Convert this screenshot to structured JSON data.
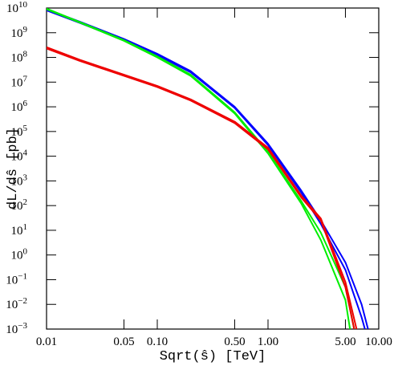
{
  "chart_data": {
    "type": "line",
    "x_label": "Sqrt(ŝ) [TeV]",
    "y_label": "dL/dŝ [pb]",
    "xscale": "log",
    "yscale": "log",
    "xlim": [
      0.01,
      10
    ],
    "ylim": [
      0.001,
      10000000000
    ],
    "xticks": [
      0.01,
      0.05,
      {
        "value": 0.1,
        "label": "0.10"
      },
      {
        "value": 0.5,
        "label": "0.50"
      },
      {
        "value": 1,
        "label": "1.00"
      },
      {
        "value": 5,
        "label": "5.00"
      },
      {
        "value": 10,
        "label": "10.00"
      }
    ],
    "yticks": [
      {
        "value": 0.001,
        "label": "10",
        "exponent": "−3"
      },
      {
        "value": 0.01,
        "label": "10",
        "exponent": "−2"
      },
      {
        "value": 0.1,
        "label": "10",
        "exponent": "−1"
      },
      {
        "value": 1,
        "label": "10",
        "exponent": "0"
      },
      {
        "value": 10,
        "label": "10",
        "exponent": "1"
      },
      {
        "value": 100,
        "label": "10",
        "exponent": "2"
      },
      {
        "value": 1000,
        "label": "10",
        "exponent": "3"
      },
      {
        "value": 10000,
        "label": "10",
        "exponent": "4"
      },
      {
        "value": 100000,
        "label": "10",
        "exponent": "5"
      },
      {
        "value": 1000000,
        "label": "10",
        "exponent": "6"
      },
      {
        "value": 10000000,
        "label": "10",
        "exponent": "7"
      },
      {
        "value": 100000000,
        "label": "10",
        "exponent": "8"
      },
      {
        "value": 1000000000,
        "label": "10",
        "exponent": "9"
      },
      {
        "value": 10000000000,
        "label": "10",
        "exponent": "10"
      }
    ],
    "series": [
      {
        "color": "#0000ff",
        "x": [
          0.01,
          0.02,
          0.05,
          0.1,
          0.2,
          0.5,
          1,
          2,
          3,
          5,
          7,
          8
        ],
        "values": [
          8900000000,
          2800000000,
          560000000,
          140000000,
          28000000,
          1000000,
          32000,
          400,
          25,
          0.5,
          0.01,
          0.001
        ]
      },
      {
        "color": "#0000ff",
        "x": [
          0.01,
          0.02,
          0.05,
          0.1,
          0.2,
          0.5,
          1,
          2,
          3,
          5,
          7,
          7.5
        ],
        "values": [
          8000000000,
          2500000000,
          500000000,
          125000000,
          25000000,
          900000,
          28000,
          330,
          18,
          0.25,
          0.003,
          0.001
        ]
      },
      {
        "color": "#00ee00",
        "x": [
          0.01,
          0.02,
          0.05,
          0.1,
          0.2,
          0.5,
          1,
          2,
          3,
          5,
          6
        ],
        "values": [
          9500000000,
          2700000000,
          500000000,
          110000000,
          20000000,
          600000,
          15000,
          150,
          8,
          0.05,
          0.001
        ]
      },
      {
        "color": "#00ee00",
        "x": [
          0.01,
          0.02,
          0.05,
          0.1,
          0.2,
          0.5,
          1,
          2,
          3,
          5,
          5.5
        ],
        "values": [
          9000000000,
          2550000000,
          470000000,
          100000000,
          18000000,
          540000,
          13000,
          120,
          4,
          0.015,
          0.001
        ]
      },
      {
        "color": "#ee0000",
        "x": [
          0.01,
          0.02,
          0.05,
          0.1,
          0.2,
          0.5,
          1,
          2,
          3,
          5,
          6.3
        ],
        "values": [
          260000000,
          80000000,
          20000000,
          7000000,
          2000000,
          250000,
          22000,
          250,
          30,
          0.08,
          0.001
        ]
      },
      {
        "color": "#ee0000",
        "x": [
          0.01,
          0.02,
          0.05,
          0.1,
          0.2,
          0.5,
          1,
          2,
          3,
          5,
          6
        ],
        "values": [
          230000000,
          72000000,
          18000000,
          6300000,
          1800000,
          220000,
          19000,
          210,
          25,
          0.05,
          0.001
        ]
      }
    ]
  }
}
